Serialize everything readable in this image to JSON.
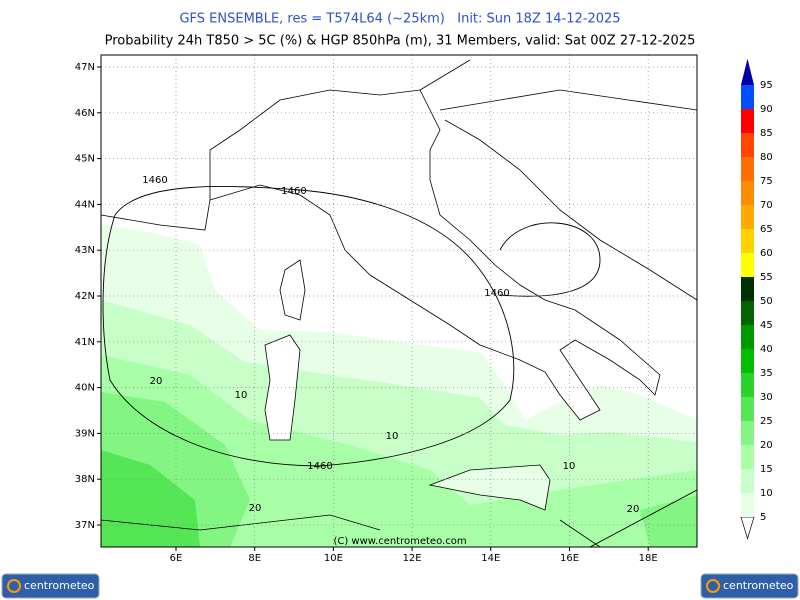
{
  "header": {
    "title": "GFS ENSEMBLE, res = T574L64 (~25km)   Init: Sun 18Z 14-12-2025",
    "subtitle": "Probability 24h T850 > 5C (%) & HGP 850hPa (m), 31 Members, valid: Sat 00Z 27-12-2025"
  },
  "map": {
    "lat_labels": [
      "47N",
      "46N",
      "45N",
      "44N",
      "43N",
      "42N",
      "41N",
      "40N",
      "39N",
      "38N",
      "37N"
    ],
    "lon_labels": [
      "6E",
      "8E",
      "10E",
      "12E",
      "14E",
      "16E",
      "18E"
    ],
    "contour_labels": [
      "1460",
      "1460",
      "1460",
      "1460",
      "20",
      "10",
      "10",
      "10",
      "20",
      "20"
    ],
    "copyright": "(C) www.centrometeo.com"
  },
  "colorbar": {
    "ticks": [
      5,
      10,
      15,
      20,
      25,
      30,
      35,
      40,
      45,
      50,
      55,
      60,
      65,
      70,
      75,
      80,
      85,
      90,
      95
    ],
    "colors": [
      "#e6ffe6",
      "#c8ffc8",
      "#a8ffa8",
      "#82f582",
      "#55e655",
      "#2ad22a",
      "#00be00",
      "#009a00",
      "#006400",
      "#003000",
      "#ffff00",
      "#ffd200",
      "#ffaa00",
      "#ff8c00",
      "#ff6e00",
      "#ff4600",
      "#ff0000",
      "#0050ff",
      "#0000aa"
    ]
  },
  "logos": [
    "centrometeo",
    "centrometeo"
  ]
}
